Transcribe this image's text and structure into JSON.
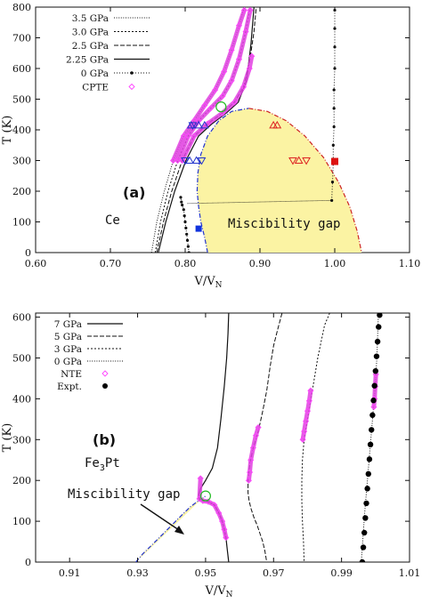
{
  "chart_data": [
    {
      "type": "line",
      "panel_label": "(a)",
      "material": "Ce",
      "annotation": "Miscibility gap",
      "xlabel": "V/V",
      "xlabel_sub": "N",
      "ylabel": "T (K)",
      "xlim": [
        0.6,
        1.1
      ],
      "ylim": [
        0,
        800
      ],
      "xticks": [
        "0.60",
        "0.70",
        "0.80",
        "0.90",
        "1.00",
        "1.10"
      ],
      "yticks": [
        "0",
        "100",
        "200",
        "300",
        "400",
        "500",
        "600",
        "700",
        "800"
      ],
      "legend_position": "top-left",
      "legend": [
        "3.5 GPa",
        "3.0 GPa",
        "2.5 GPa",
        "2.25 GPa",
        "0 GPa",
        "CPTE"
      ],
      "series": [
        {
          "name": "3.5 GPa",
          "style": "dotted",
          "x": [
            0.755,
            0.762,
            0.772,
            0.784,
            0.798,
            0.812,
            0.826,
            0.84,
            0.852,
            0.862,
            0.872,
            0.879
          ],
          "y": [
            0,
            100,
            200,
            300,
            380,
            430,
            480,
            530,
            590,
            660,
            740,
            800
          ]
        },
        {
          "name": "3.0 GPa",
          "style": "dotted2",
          "x": [
            0.76,
            0.767,
            0.777,
            0.79,
            0.804,
            0.818,
            0.834,
            0.85,
            0.862,
            0.872,
            0.881,
            0.887
          ],
          "y": [
            0,
            100,
            200,
            300,
            380,
            430,
            470,
            510,
            560,
            630,
            720,
            800
          ]
        },
        {
          "name": "2.5 GPa",
          "style": "dashed",
          "x": [
            0.762,
            0.771,
            0.782,
            0.796,
            0.812,
            0.83,
            0.85,
            0.866,
            0.878,
            0.886,
            0.892,
            0.895
          ],
          "y": [
            0,
            100,
            200,
            300,
            380,
            420,
            455,
            490,
            540,
            620,
            720,
            800
          ]
        },
        {
          "name": "2.25 GPa",
          "style": "solid",
          "x": [
            0.764,
            0.774,
            0.786,
            0.801,
            0.818,
            0.836,
            0.855,
            0.871,
            0.882,
            0.888,
            0.892
          ],
          "y": [
            0,
            100,
            200,
            300,
            380,
            420,
            455,
            490,
            560,
            680,
            800
          ]
        },
        {
          "name": "0 GPa",
          "style": "dot-marker",
          "x": [
            0.805,
            0.804,
            0.803,
            0.802,
            0.801,
            0.8,
            0.799,
            0.798,
            0.796,
            0.795,
            0.794
          ],
          "y": [
            0,
            20,
            40,
            60,
            80,
            100,
            120,
            140,
            155,
            165,
            180
          ]
        },
        {
          "name": "0 GPa high",
          "style": "dot-marker",
          "x": [
            0.996,
            0.997,
            0.998,
            0.998,
            0.999,
            0.999,
            0.999,
            1.0,
            1.0,
            1.0,
            1.0
          ],
          "y": [
            170,
            230,
            290,
            350,
            410,
            470,
            530,
            600,
            670,
            730,
            790
          ]
        }
      ],
      "tie_line": {
        "x": [
          0.803,
          0.998
        ],
        "y": [
          160,
          170
        ]
      },
      "gap_boundary": {
        "x": [
          0.83,
          0.826,
          0.821,
          0.818,
          0.816,
          0.817,
          0.821,
          0.83,
          0.845,
          0.862,
          0.885,
          0.91,
          0.935,
          0.96,
          0.985,
          1.005,
          1.02,
          1.03,
          1.036
        ],
        "y": [
          0,
          50,
          100,
          150,
          200,
          260,
          320,
          380,
          430,
          460,
          470,
          460,
          430,
          380,
          310,
          230,
          150,
          70,
          0
        ]
      },
      "critical_point": {
        "x": 0.848,
        "y": 475
      },
      "cpte_segments": [
        {
          "x": [
            0.784,
            0.798,
            0.812,
            0.826,
            0.84,
            0.852,
            0.862,
            0.872,
            0.879
          ],
          "y": [
            300,
            380,
            430,
            480,
            530,
            590,
            660,
            740,
            790
          ]
        },
        {
          "x": [
            0.79,
            0.804,
            0.818,
            0.834,
            0.85,
            0.862,
            0.872,
            0.881,
            0.887
          ],
          "y": [
            300,
            380,
            430,
            470,
            510,
            560,
            630,
            720,
            790
          ]
        },
        {
          "x": [
            0.796,
            0.812,
            0.83,
            0.85,
            0.866,
            0.878,
            0.886,
            0.889
          ],
          "y": [
            300,
            380,
            420,
            455,
            490,
            540,
            600,
            640
          ]
        }
      ],
      "triangles_blue_up": {
        "x": [
          0.808,
          0.818,
          0.826,
          0.806,
          0.815
        ],
        "y": [
          415,
          415,
          415,
          300,
          300
        ]
      },
      "triangles_blue_down": {
        "x": [
          0.8,
          0.822,
          0.81
        ],
        "y": [
          300,
          300,
          415
        ]
      },
      "triangles_red_up": {
        "x": [
          0.918,
          0.923,
          0.952
        ],
        "y": [
          415,
          415,
          300
        ]
      },
      "triangles_red_down": {
        "x": [
          0.944,
          0.962
        ],
        "y": [
          300,
          300
        ]
      },
      "blue_square": {
        "x": 0.818,
        "y": 78
      },
      "red_square": {
        "x": 1.0,
        "y": 297
      }
    },
    {
      "type": "line",
      "panel_label": "(b)",
      "material_main": "Fe",
      "material_sub": "3",
      "material_tail": "Pt",
      "annotation": "Miscibility gap",
      "xlabel": "V/V",
      "xlabel_sub": "N",
      "ylabel": "T (K)",
      "xlim": [
        0.9,
        1.01
      ],
      "ylim": [
        0,
        610
      ],
      "xticks": [
        "0.91",
        "0.93",
        "0.95",
        "0.97",
        "0.99",
        "1.01"
      ],
      "yticks": [
        "0",
        "100",
        "200",
        "300",
        "400",
        "500",
        "600"
      ],
      "legend_position": "top-left",
      "legend": [
        "7 GPa",
        "5 GPa",
        "3 GPa",
        "0 GPa",
        "NTE",
        "Expt."
      ],
      "series": [
        {
          "name": "7 GPa",
          "style": "solid",
          "x": [
            0.9568,
            0.9566,
            0.9562,
            0.9555,
            0.9545,
            0.9535,
            0.952,
            0.95,
            0.9485,
            0.948,
            0.9482,
            0.9492,
            0.9508,
            0.9526,
            0.9539,
            0.9549,
            0.9555,
            0.956,
            0.9564,
            0.9568
          ],
          "y": [
            610,
            560,
            500,
            430,
            350,
            280,
            230,
            200,
            180,
            165,
            155,
            150,
            148,
            140,
            120,
            100,
            80,
            60,
            30,
            0
          ]
        },
        {
          "name": "5 GPa",
          "style": "dashed",
          "x": [
            0.9725,
            0.9712,
            0.97,
            0.969,
            0.968,
            0.9668,
            0.9655,
            0.964,
            0.963,
            0.9625,
            0.9625,
            0.9628,
            0.9634,
            0.9642,
            0.9652,
            0.966,
            0.9668,
            0.9675,
            0.968
          ],
          "y": [
            610,
            570,
            530,
            480,
            420,
            370,
            320,
            280,
            240,
            200,
            170,
            150,
            130,
            110,
            90,
            70,
            50,
            25,
            0
          ]
        },
        {
          "name": "3 GPa",
          "style": "dotted2",
          "x": [
            0.9865,
            0.985,
            0.984,
            0.983,
            0.982,
            0.981,
            0.98,
            0.979,
            0.9785,
            0.9783,
            0.9783,
            0.9785,
            0.9788,
            0.979
          ],
          "y": [
            610,
            580,
            540,
            500,
            450,
            400,
            350,
            300,
            250,
            200,
            150,
            100,
            50,
            0
          ]
        },
        {
          "name": "0 GPa",
          "style": "dotted",
          "x": [
            0.9958,
            0.9963,
            0.9968,
            0.9974,
            0.998,
            0.9986,
            0.9992,
            0.9998,
            1.0004,
            1.0008
          ],
          "y": [
            0,
            60,
            120,
            180,
            240,
            300,
            360,
            420,
            500,
            600
          ]
        }
      ],
      "gap_boundary": {
        "x": [
          0.9295,
          0.9315,
          0.934,
          0.937,
          0.94,
          0.943,
          0.9455,
          0.9475,
          0.9488,
          0.9495,
          0.9498,
          0.9498
        ],
        "y": [
          0,
          20,
          40,
          65,
          90,
          115,
          135,
          148,
          155,
          158,
          160,
          162
        ]
      },
      "critical_point": {
        "x": 0.95,
        "y": 162
      },
      "nte_segments": [
        {
          "x": [
            0.9485,
            0.9482,
            0.9492,
            0.9508,
            0.9526,
            0.9539,
            0.9549,
            0.9555,
            0.956
          ],
          "y": [
            205,
            155,
            150,
            148,
            140,
            120,
            100,
            80,
            60
          ]
        },
        {
          "x": [
            0.9655,
            0.9648,
            0.964,
            0.9633,
            0.963,
            0.9627
          ],
          "y": [
            330,
            310,
            280,
            250,
            220,
            200
          ]
        },
        {
          "x": [
            0.9809,
            0.9805,
            0.98,
            0.9795,
            0.979,
            0.9786
          ],
          "y": [
            420,
            395,
            370,
            345,
            320,
            300
          ]
        },
        {
          "x": [
            0.9995,
            0.9997,
            0.9999,
            1.0001
          ],
          "y": [
            380,
            400,
            430,
            460
          ]
        }
      ],
      "expt": {
        "x": [
          0.9961,
          0.9964,
          0.9967,
          0.997,
          0.9973,
          0.9976,
          0.9979,
          0.9982,
          0.9985,
          0.9988,
          0.9991,
          0.9994,
          0.9997,
          1.0,
          1.0003,
          1.0006,
          1.0009,
          1.0012
        ],
        "y": [
          0,
          36,
          72,
          108,
          144,
          180,
          216,
          252,
          288,
          324,
          360,
          396,
          432,
          468,
          504,
          540,
          576,
          605
        ]
      }
    }
  ]
}
